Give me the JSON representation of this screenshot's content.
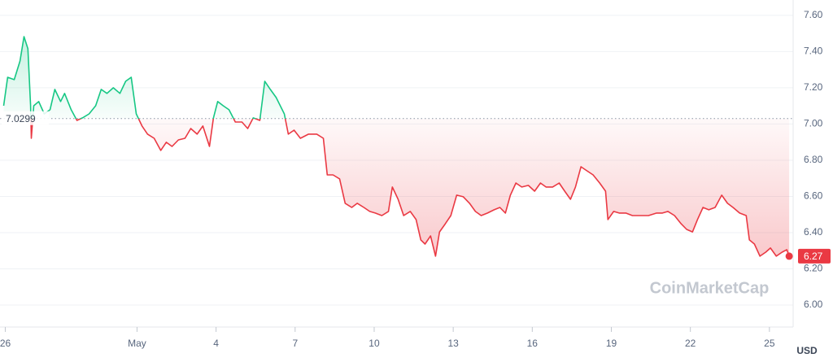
{
  "chart_data": {
    "type": "baseline-line",
    "y_label": "USD",
    "watermark": "CoinMarketCap",
    "baseline": 7.0299,
    "up_color": "#16c784",
    "down_color": "#ea3943",
    "grid": true,
    "xlim": [
      -0.2,
      29.9
    ],
    "ylim": [
      5.91,
      7.685
    ],
    "xticks": [
      {
        "value": 0,
        "label": "26"
      },
      {
        "value": 5,
        "label": "May"
      },
      {
        "value": 8,
        "label": "4"
      },
      {
        "value": 11,
        "label": "7"
      },
      {
        "value": 14,
        "label": "10"
      },
      {
        "value": 17,
        "label": "13"
      },
      {
        "value": 20,
        "label": "16"
      },
      {
        "value": 23,
        "label": "19"
      },
      {
        "value": 26,
        "label": "22"
      },
      {
        "value": 29,
        "label": "25"
      }
    ],
    "yticks": [
      {
        "value": 6.0,
        "label": "6.00"
      },
      {
        "value": 6.2,
        "label": "6.20"
      },
      {
        "value": 6.4,
        "label": "6.40"
      },
      {
        "value": 6.6,
        "label": "6.60"
      },
      {
        "value": 6.8,
        "label": "6.80"
      },
      {
        "value": 7.0,
        "label": "7.00"
      },
      {
        "value": 7.2,
        "label": "7.20"
      },
      {
        "value": 7.4,
        "label": "7.40"
      },
      {
        "value": 7.6,
        "label": "7.60"
      }
    ],
    "x": [
      -0.06,
      0.09,
      0.34,
      0.56,
      0.71,
      0.86,
      0.96,
      0.99,
      1.08,
      1.27,
      1.48,
      1.7,
      1.88,
      2.1,
      2.25,
      2.5,
      2.72,
      2.93,
      3.18,
      3.43,
      3.64,
      3.86,
      4.1,
      4.35,
      4.57,
      4.78,
      4.97,
      5.19,
      5.4,
      5.65,
      5.9,
      6.11,
      6.33,
      6.57,
      6.82,
      7.04,
      7.28,
      7.5,
      7.75,
      7.9,
      8.06,
      8.27,
      8.49,
      8.73,
      8.98,
      9.2,
      9.41,
      9.66,
      9.85,
      10.06,
      10.28,
      10.59,
      10.74,
      10.96,
      11.2,
      11.51,
      11.82,
      12.07,
      12.22,
      12.44,
      12.69,
      12.9,
      13.15,
      13.36,
      13.61,
      13.83,
      14.04,
      14.29,
      14.54,
      14.69,
      14.91,
      15.12,
      15.37,
      15.59,
      15.77,
      15.93,
      16.14,
      16.33,
      16.48,
      16.7,
      16.91,
      17.13,
      17.38,
      17.62,
      17.84,
      18.06,
      18.3,
      18.55,
      18.77,
      18.98,
      19.17,
      19.38,
      19.6,
      19.85,
      20.09,
      20.31,
      20.52,
      20.77,
      21.02,
      21.23,
      21.45,
      21.64,
      21.85,
      22.07,
      22.31,
      22.56,
      22.78,
      22.87,
      23.09,
      23.3,
      23.55,
      23.8,
      24.1,
      24.41,
      24.72,
      24.94,
      25.15,
      25.4,
      25.65,
      25.86,
      26.08,
      26.27,
      26.48,
      26.7,
      26.94,
      27.19,
      27.41,
      27.62,
      27.87,
      28.12,
      28.24,
      28.43,
      28.64,
      28.86,
      29.04,
      29.26,
      29.48,
      29.66,
      29.75
    ],
    "values": [
      7.101,
      7.258,
      7.245,
      7.348,
      7.483,
      7.416,
      7.101,
      6.921,
      7.101,
      7.124,
      7.056,
      7.079,
      7.191,
      7.124,
      7.169,
      7.079,
      7.02,
      7.034,
      7.056,
      7.101,
      7.191,
      7.169,
      7.2,
      7.169,
      7.236,
      7.258,
      7.056,
      6.989,
      6.944,
      6.921,
      6.854,
      6.899,
      6.876,
      6.912,
      6.921,
      6.975,
      6.944,
      6.989,
      6.876,
      7.034,
      7.124,
      7.101,
      7.079,
      7.011,
      7.011,
      6.975,
      7.034,
      7.02,
      7.236,
      7.191,
      7.146,
      7.056,
      6.944,
      6.966,
      6.921,
      6.944,
      6.944,
      6.921,
      6.719,
      6.719,
      6.697,
      6.562,
      6.539,
      6.562,
      6.539,
      6.517,
      6.508,
      6.494,
      6.517,
      6.652,
      6.584,
      6.494,
      6.517,
      6.472,
      6.36,
      6.337,
      6.382,
      6.27,
      6.404,
      6.449,
      6.494,
      6.607,
      6.598,
      6.562,
      6.517,
      6.494,
      6.508,
      6.526,
      6.539,
      6.508,
      6.607,
      6.674,
      6.652,
      6.661,
      6.629,
      6.674,
      6.652,
      6.652,
      6.674,
      6.629,
      6.584,
      6.652,
      6.764,
      6.742,
      6.719,
      6.674,
      6.629,
      6.472,
      6.517,
      6.508,
      6.508,
      6.494,
      6.494,
      6.494,
      6.508,
      6.508,
      6.517,
      6.494,
      6.449,
      6.418,
      6.404,
      6.472,
      6.539,
      6.526,
      6.539,
      6.607,
      6.562,
      6.539,
      6.508,
      6.494,
      6.36,
      6.337,
      6.27,
      6.292,
      6.315,
      6.27,
      6.292,
      6.306,
      6.27
    ]
  }
}
